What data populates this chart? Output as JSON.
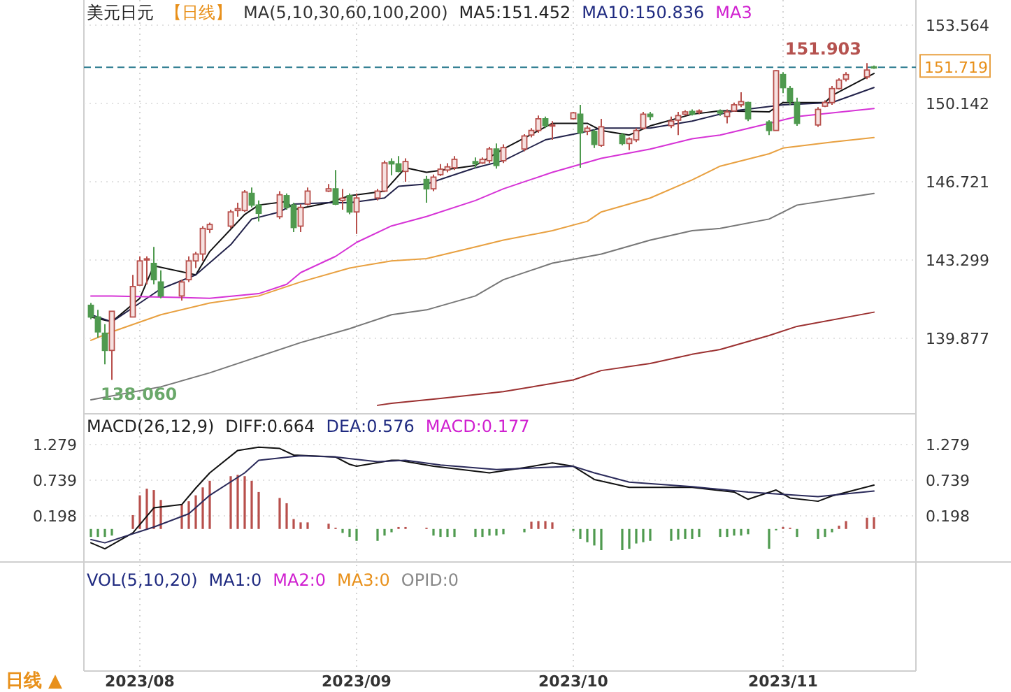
{
  "chart_data": [
    {
      "type": "candlestick",
      "title": "美元日元",
      "subtitle": "【日线】",
      "annotations": [
        "MA(5,10,30,60,100,200)",
        "MA5:151.452",
        "MA10:150.836",
        "MA3",
        {
          "text": "151.903",
          "x": "2023-11-13",
          "y": 151.903
        },
        {
          "text": "138.060",
          "x": "2023-07-28",
          "y": 138.06
        }
      ],
      "x": [
        "2023-07-25",
        "2023-07-26",
        "2023-07-27",
        "2023-07-28",
        "2023-07-31",
        "2023-08-01",
        "2023-08-02",
        "2023-08-03",
        "2023-08-04",
        "2023-08-07",
        "2023-08-08",
        "2023-08-09",
        "2023-08-10",
        "2023-08-11",
        "2023-08-14",
        "2023-08-15",
        "2023-08-16",
        "2023-08-17",
        "2023-08-18",
        "2023-08-21",
        "2023-08-22",
        "2023-08-23",
        "2023-08-24",
        "2023-08-25",
        "2023-08-28",
        "2023-08-29",
        "2023-08-30",
        "2023-08-31",
        "2023-09-01",
        "2023-09-04",
        "2023-09-05",
        "2023-09-06",
        "2023-09-07",
        "2023-09-08",
        "2023-09-11",
        "2023-09-12",
        "2023-09-13",
        "2023-09-14",
        "2023-09-15",
        "2023-09-18",
        "2023-09-19",
        "2023-09-20",
        "2023-09-21",
        "2023-09-22",
        "2023-09-25",
        "2023-09-26",
        "2023-09-27",
        "2023-09-28",
        "2023-09-29",
        "2023-10-02",
        "2023-10-03",
        "2023-10-04",
        "2023-10-05",
        "2023-10-06",
        "2023-10-09",
        "2023-10-10",
        "2023-10-11",
        "2023-10-12",
        "2023-10-13",
        "2023-10-16",
        "2023-10-17",
        "2023-10-18",
        "2023-10-19",
        "2023-10-20",
        "2023-10-23",
        "2023-10-24",
        "2023-10-25",
        "2023-10-26",
        "2023-10-27",
        "2023-10-30",
        "2023-10-31",
        "2023-11-01",
        "2023-11-02",
        "2023-11-03",
        "2023-11-06",
        "2023-11-07",
        "2023-11-08",
        "2023-11-09",
        "2023-11-10",
        "2023-11-13",
        "2023-11-14"
      ],
      "ohlc": [
        [
          141.32,
          141.42,
          140.71,
          140.81
        ],
        [
          140.81,
          141.12,
          139.9,
          140.16
        ],
        [
          140.1,
          140.5,
          138.74,
          139.35
        ],
        [
          139.35,
          141.06,
          138.06,
          141.06
        ],
        [
          140.81,
          142.65,
          140.81,
          142.14
        ],
        [
          142.2,
          143.46,
          142.2,
          143.26
        ],
        [
          143.3,
          143.46,
          142.24,
          143.35
        ],
        [
          143.15,
          143.87,
          142.24,
          142.44
        ],
        [
          142.34,
          142.85,
          141.63,
          141.73
        ],
        [
          141.73,
          142.44,
          141.53,
          142.34
        ],
        [
          142.44,
          143.46,
          142.34,
          143.26
        ],
        [
          143.26,
          143.66,
          142.95,
          143.56
        ],
        [
          143.56,
          144.78,
          143.26,
          144.68
        ],
        [
          144.64,
          144.93,
          144.48,
          144.85
        ],
        [
          144.78,
          145.5,
          144.68,
          145.4
        ],
        [
          145.46,
          145.8,
          145.19,
          145.54
        ],
        [
          145.46,
          146.35,
          145.4,
          146.27
        ],
        [
          146.21,
          146.47,
          145.6,
          145.7
        ],
        [
          145.7,
          145.9,
          144.99,
          145.34
        ],
        [
          145.19,
          146.31,
          145.09,
          146.15
        ],
        [
          146.11,
          146.21,
          145.5,
          145.6
        ],
        [
          145.7,
          145.8,
          144.52,
          144.72
        ],
        [
          144.78,
          145.74,
          144.52,
          145.6
        ],
        [
          145.74,
          146.47,
          145.68,
          146.31
        ],
        [
          146.31,
          146.62,
          146.27,
          146.41
        ],
        [
          146.41,
          147.23,
          145.7,
          145.74
        ],
        [
          145.9,
          146.41,
          145.5,
          146.0
        ],
        [
          146.11,
          146.21,
          145.3,
          145.4
        ],
        [
          145.4,
          146.21,
          144.44,
          146.01
        ],
        [
          146.01,
          146.41,
          145.9,
          146.31
        ],
        [
          146.31,
          147.64,
          146.27,
          147.54
        ],
        [
          147.6,
          147.74,
          147.0,
          147.5
        ],
        [
          147.5,
          147.84,
          147.13,
          147.17
        ],
        [
          147.17,
          147.74,
          146.72,
          147.6
        ],
        [
          146.82,
          146.97,
          145.8,
          146.41
        ],
        [
          146.41,
          147.03,
          146.31,
          146.92
        ],
        [
          147.03,
          147.49,
          146.97,
          147.27
        ],
        [
          147.23,
          147.53,
          147.13,
          147.37
        ],
        [
          147.33,
          147.84,
          147.23,
          147.7
        ],
        [
          147.6,
          147.78,
          147.33,
          147.5
        ],
        [
          147.54,
          147.78,
          147.5,
          147.7
        ],
        [
          147.64,
          148.25,
          147.54,
          148.15
        ],
        [
          148.15,
          148.39,
          147.29,
          147.43
        ],
        [
          147.64,
          148.35,
          147.54,
          148.21
        ],
        [
          148.15,
          148.8,
          148.05,
          148.72
        ],
        [
          148.76,
          149.06,
          148.66,
          148.96
        ],
        [
          148.96,
          149.61,
          148.86,
          149.47
        ],
        [
          149.47,
          149.57,
          149.06,
          149.17
        ],
        [
          149.17,
          149.37,
          148.55,
          149.2
        ],
        [
          149.47,
          149.77,
          149.43,
          149.73
        ],
        [
          149.67,
          150.08,
          147.33,
          148.86
        ],
        [
          148.92,
          149.17,
          148.76,
          149.06
        ],
        [
          148.92,
          149.0,
          148.19,
          148.35
        ],
        [
          148.31,
          149.47,
          148.25,
          149.12
        ],
        [
          148.76,
          148.86,
          148.31,
          148.39
        ],
        [
          148.39,
          148.66,
          148.1,
          148.59
        ],
        [
          148.55,
          149.06,
          148.45,
          148.96
        ],
        [
          149.06,
          149.77,
          149.0,
          149.67
        ],
        [
          149.67,
          149.77,
          149.41,
          149.57
        ],
        [
          149.17,
          149.57,
          149.06,
          149.37
        ],
        [
          149.41,
          149.77,
          148.76,
          149.61
        ],
        [
          149.67,
          149.84,
          149.61,
          149.77
        ],
        [
          149.79,
          149.88,
          149.61,
          149.67
        ],
        [
          149.77,
          149.88,
          149.67,
          149.81
        ],
        [
          149.8,
          149.88,
          149.6,
          149.72
        ],
        [
          149.57,
          149.88,
          149.27,
          149.77
        ],
        [
          149.81,
          150.18,
          149.78,
          150.08
        ],
        [
          150.08,
          150.63,
          149.98,
          150.22
        ],
        [
          150.18,
          150.22,
          149.37,
          149.47
        ],
        [
          149.33,
          149.41,
          148.76,
          148.96
        ],
        [
          148.96,
          151.6,
          148.96,
          151.57
        ],
        [
          151.4,
          151.51,
          150.59,
          150.83
        ],
        [
          150.79,
          150.9,
          150.08,
          150.22
        ],
        [
          150.18,
          150.39,
          149.16,
          149.27
        ],
        [
          149.2,
          149.98,
          149.12,
          149.88
        ],
        [
          150.02,
          150.28,
          149.98,
          150.18
        ],
        [
          150.18,
          150.9,
          150.08,
          150.79
        ],
        [
          150.79,
          151.24,
          150.75,
          151.16
        ],
        [
          151.2,
          151.51,
          151.1,
          151.4
        ],
        [
          151.3,
          151.903,
          151.2,
          151.6
        ],
        [
          151.74,
          151.8,
          151.65,
          151.719
        ]
      ],
      "series": [
        {
          "type": "line",
          "color": "#111111",
          "x": [
            "2023-07-25",
            "2023-07-28",
            "2023-08-01",
            "2023-08-03",
            "2023-08-09",
            "2023-08-11",
            "2023-08-16",
            "2023-08-18",
            "2023-08-22",
            "2023-08-23",
            "2023-08-28",
            "2023-08-31",
            "2023-09-05",
            "2023-09-08",
            "2023-09-11",
            "2023-09-18",
            "2023-09-22",
            "2023-09-29",
            "2023-10-04",
            "2023-10-06",
            "2023-10-10",
            "2023-10-13",
            "2023-10-19",
            "2023-10-23",
            "2023-10-30",
            "2023-11-01",
            "2023-11-07",
            "2023-11-08",
            "2023-11-14"
          ],
          "values": [
            140.81,
            140.6,
            141.63,
            143.05,
            142.65,
            143.67,
            145.29,
            145.7,
            145.86,
            145.5,
            145.8,
            146.11,
            146.31,
            147.33,
            147.13,
            147.43,
            148.15,
            149.27,
            149.27,
            148.96,
            148.76,
            149.16,
            149.67,
            149.82,
            149.77,
            150.18,
            150.18,
            150.49,
            151.452
          ]
        },
        {
          "type": "line",
          "color": "#22224a",
          "x": [
            "2023-07-25",
            "2023-07-28",
            "2023-08-01",
            "2023-08-04",
            "2023-08-09",
            "2023-08-14",
            "2023-08-17",
            "2023-08-21",
            "2023-08-23",
            "2023-08-28",
            "2023-08-31",
            "2023-09-05",
            "2023-09-07",
            "2023-09-11",
            "2023-09-18",
            "2023-09-22",
            "2023-09-28",
            "2023-10-03",
            "2023-10-06",
            "2023-10-13",
            "2023-10-19",
            "2023-10-25",
            "2023-11-01",
            "2023-11-08",
            "2023-11-14"
          ],
          "values": [
            140.91,
            140.6,
            141.42,
            142.04,
            142.65,
            143.97,
            145.09,
            145.4,
            145.74,
            145.8,
            145.8,
            146.01,
            146.52,
            146.62,
            147.33,
            147.64,
            148.55,
            148.86,
            149.06,
            149.06,
            149.37,
            149.82,
            150.08,
            150.18,
            150.836
          ]
        },
        {
          "type": "line",
          "color": "#d633d6",
          "x": [
            "2023-07-25",
            "2023-07-28",
            "2023-08-04",
            "2023-08-11",
            "2023-08-18",
            "2023-08-22",
            "2023-08-24",
            "2023-08-29",
            "2023-09-01",
            "2023-09-06",
            "2023-09-11",
            "2023-09-18",
            "2023-09-22",
            "2023-09-29",
            "2023-10-06",
            "2023-10-13",
            "2023-10-19",
            "2023-10-23",
            "2023-10-30",
            "2023-11-03",
            "2023-11-14"
          ],
          "values": [
            141.73,
            141.73,
            141.68,
            141.63,
            141.83,
            142.24,
            142.75,
            143.46,
            144.07,
            144.79,
            145.2,
            145.9,
            146.41,
            147.13,
            147.74,
            148.15,
            148.6,
            148.76,
            149.27,
            149.57,
            149.92
          ]
        },
        {
          "type": "line",
          "color": "#e8a040",
          "x": [
            "2023-07-25",
            "2023-07-28",
            "2023-08-04",
            "2023-08-11",
            "2023-08-18",
            "2023-08-24",
            "2023-08-31",
            "2023-09-06",
            "2023-09-11",
            "2023-09-18",
            "2023-09-22",
            "2023-09-29",
            "2023-10-04",
            "2023-10-06",
            "2023-10-13",
            "2023-10-19",
            "2023-10-23",
            "2023-10-30",
            "2023-11-01",
            "2023-11-08",
            "2023-11-14"
          ],
          "values": [
            139.79,
            140.16,
            140.91,
            141.42,
            141.73,
            142.34,
            142.95,
            143.26,
            143.36,
            143.87,
            144.17,
            144.58,
            144.99,
            145.4,
            146.01,
            146.8,
            147.4,
            147.94,
            148.19,
            148.45,
            148.65
          ]
        },
        {
          "type": "line",
          "color": "#777777",
          "x": [
            "2023-07-25",
            "2023-08-04",
            "2023-08-11",
            "2023-08-17",
            "2023-08-24",
            "2023-08-31",
            "2023-09-06",
            "2023-09-11",
            "2023-09-18",
            "2023-09-22",
            "2023-09-29",
            "2023-10-06",
            "2023-10-13",
            "2023-10-19",
            "2023-10-23",
            "2023-10-30",
            "2023-11-03",
            "2023-11-14"
          ],
          "values": [
            137.19,
            137.76,
            138.37,
            138.98,
            139.69,
            140.3,
            140.91,
            141.12,
            141.73,
            142.44,
            143.16,
            143.56,
            144.17,
            144.58,
            144.68,
            145.09,
            145.7,
            146.21
          ]
        },
        {
          "type": "line",
          "color": "#9b3030",
          "x": [
            "2023-09-04",
            "2023-09-06",
            "2023-09-13",
            "2023-09-22",
            "2023-10-02",
            "2023-10-06",
            "2023-10-13",
            "2023-10-19",
            "2023-10-23",
            "2023-10-30",
            "2023-11-03",
            "2023-11-14"
          ],
          "values": [
            136.95,
            137.04,
            137.25,
            137.55,
            138.06,
            138.47,
            138.78,
            139.18,
            139.39,
            140.0,
            140.4,
            141.02
          ]
        }
      ],
      "ref_lines": [
        {
          "axis": "y",
          "value": 151.719,
          "label": "151.719",
          "color": "#2b7b8f",
          "line_style": "dashed"
        }
      ],
      "xlim": [
        "2023-07-24",
        "2023-11-20"
      ],
      "ylim": [
        136.58,
        154.66
      ],
      "xticks": [
        {
          "value": "2023-08-01",
          "label": null
        },
        {
          "value": "2023-09-01",
          "label": null
        },
        {
          "value": "2023-10-02",
          "label": null
        },
        {
          "value": "2023-11-01",
          "label": null
        }
      ],
      "yticks": [
        139.877,
        143.299,
        146.721,
        150.142,
        153.564
      ],
      "tick_labels": "y",
      "grid": true
    },
    {
      "type": "line",
      "title": "MACD(26,12,9)",
      "annotations": [
        "DIFF:0.664",
        "DEA:0.576",
        "MACD:0.177"
      ],
      "x": [
        "2023-07-25",
        "2023-07-26",
        "2023-07-27",
        "2023-07-28",
        "2023-07-31",
        "2023-08-01",
        "2023-08-02",
        "2023-08-03",
        "2023-08-04",
        "2023-08-07",
        "2023-08-08",
        "2023-08-09",
        "2023-08-10",
        "2023-08-11",
        "2023-08-14",
        "2023-08-15",
        "2023-08-16",
        "2023-08-17",
        "2023-08-18",
        "2023-08-21",
        "2023-08-22",
        "2023-08-23",
        "2023-08-24",
        "2023-08-25",
        "2023-08-28",
        "2023-08-29",
        "2023-08-30",
        "2023-08-31",
        "2023-09-01",
        "2023-09-04",
        "2023-09-05",
        "2023-09-06",
        "2023-09-07",
        "2023-09-08",
        "2023-09-11",
        "2023-09-12",
        "2023-09-13",
        "2023-09-14",
        "2023-09-15",
        "2023-09-18",
        "2023-09-19",
        "2023-09-20",
        "2023-09-21",
        "2023-09-22",
        "2023-09-25",
        "2023-09-26",
        "2023-09-27",
        "2023-09-28",
        "2023-09-29",
        "2023-10-02",
        "2023-10-03",
        "2023-10-04",
        "2023-10-05",
        "2023-10-06",
        "2023-10-09",
        "2023-10-10",
        "2023-10-11",
        "2023-10-12",
        "2023-10-13",
        "2023-10-16",
        "2023-10-17",
        "2023-10-18",
        "2023-10-19",
        "2023-10-20",
        "2023-10-23",
        "2023-10-24",
        "2023-10-25",
        "2023-10-26",
        "2023-10-27",
        "2023-10-30",
        "2023-10-31",
        "2023-11-01",
        "2023-11-02",
        "2023-11-03",
        "2023-11-06",
        "2023-11-07",
        "2023-11-08",
        "2023-11-09",
        "2023-11-10",
        "2023-11-13",
        "2023-11-14"
      ],
      "series": [
        {
          "type": "bar",
          "colors": [
            "#4f9a4f",
            "#4f9a4f",
            "#4f9a4f",
            "#4f9a4f",
            "#b8504c",
            "#b8504c",
            "#b8504c",
            "#b8504c",
            "#b8504c",
            "#b8504c",
            "#b8504c",
            "#b8504c",
            "#b8504c",
            "#b8504c",
            "#b8504c",
            "#b8504c",
            "#b8504c",
            "#b8504c",
            "#b8504c",
            "#b8504c",
            "#b8504c",
            "#b8504c",
            "#b8504c",
            "#b8504c",
            "#b8504c",
            "#b8504c",
            "#4f9a4f",
            "#4f9a4f",
            "#4f9a4f",
            "#4f9a4f",
            "#4f9a4f",
            "#4f9a4f",
            "#b8504c",
            "#b8504c",
            "#b8504c",
            "#4f9a4f",
            "#4f9a4f",
            "#4f9a4f",
            "#4f9a4f",
            "#4f9a4f",
            "#4f9a4f",
            "#4f9a4f",
            "#4f9a4f",
            "#4f9a4f",
            "#4f9a4f",
            "#b8504c",
            "#b8504c",
            "#b8504c",
            "#b8504c",
            "#4f9a4f",
            "#4f9a4f",
            "#4f9a4f",
            "#4f9a4f",
            "#4f9a4f",
            "#4f9a4f",
            "#4f9a4f",
            "#4f9a4f",
            "#4f9a4f",
            "#4f9a4f",
            "#4f9a4f",
            "#4f9a4f",
            "#4f9a4f",
            "#4f9a4f",
            "#4f9a4f",
            "#4f9a4f",
            "#4f9a4f",
            "#4f9a4f",
            "#4f9a4f",
            "#4f9a4f",
            "#4f9a4f",
            "#4f9a4f",
            "#b8504c",
            "#b8504c",
            "#4f9a4f",
            "#4f9a4f",
            "#4f9a4f",
            "#4f9a4f",
            "#b8504c",
            "#b8504c",
            "#b8504c",
            "#b8504c"
          ],
          "values": [
            -0.12,
            -0.12,
            -0.12,
            -0.1,
            0.21,
            0.51,
            0.61,
            0.59,
            0.44,
            0.37,
            0.42,
            0.51,
            0.63,
            0.73,
            0.8,
            0.82,
            0.8,
            0.73,
            0.56,
            0.47,
            0.39,
            0.15,
            0.1,
            0.1,
            0.08,
            0.02,
            -0.06,
            -0.12,
            -0.18,
            -0.18,
            -0.1,
            -0.05,
            0.03,
            0.03,
            0.02,
            -0.1,
            -0.12,
            -0.12,
            -0.12,
            -0.12,
            -0.12,
            -0.1,
            -0.1,
            -0.08,
            -0.05,
            0.11,
            0.12,
            0.12,
            0.1,
            -0.03,
            -0.15,
            -0.2,
            -0.25,
            -0.32,
            -0.32,
            -0.3,
            -0.22,
            -0.2,
            -0.18,
            -0.18,
            -0.16,
            -0.15,
            -0.15,
            -0.12,
            -0.12,
            -0.12,
            -0.1,
            -0.1,
            -0.08,
            -0.3,
            -0.02,
            0.03,
            0.02,
            -0.12,
            -0.15,
            -0.12,
            -0.05,
            0.05,
            0.12,
            0.17,
            0.177
          ]
        },
        {
          "type": "line",
          "color": "#111111",
          "x": [
            "2023-07-25",
            "2023-07-27",
            "2023-07-31",
            "2023-08-03",
            "2023-08-07",
            "2023-08-09",
            "2023-08-11",
            "2023-08-15",
            "2023-08-18",
            "2023-08-21",
            "2023-08-23",
            "2023-08-29",
            "2023-08-31",
            "2023-09-01",
            "2023-09-06",
            "2023-09-07",
            "2023-09-12",
            "2023-09-20",
            "2023-09-25",
            "2023-09-29",
            "2023-10-02",
            "2023-10-05",
            "2023-10-10",
            "2023-10-19",
            "2023-10-25",
            "2023-10-27",
            "2023-10-31",
            "2023-11-02",
            "2023-11-06",
            "2023-11-08",
            "2023-11-14"
          ],
          "values": [
            -0.21,
            -0.3,
            -0.06,
            0.32,
            0.37,
            0.62,
            0.85,
            1.19,
            1.24,
            1.22,
            1.12,
            1.09,
            0.98,
            0.95,
            1.04,
            1.04,
            0.95,
            0.85,
            0.93,
            1.0,
            0.95,
            0.75,
            0.63,
            0.63,
            0.56,
            0.45,
            0.59,
            0.47,
            0.42,
            0.5,
            0.664
          ]
        },
        {
          "type": "line",
          "color": "#2a2a5a",
          "x": [
            "2023-07-25",
            "2023-07-27",
            "2023-08-03",
            "2023-08-08",
            "2023-08-11",
            "2023-08-16",
            "2023-08-18",
            "2023-08-24",
            "2023-08-29",
            "2023-09-04",
            "2023-09-08",
            "2023-09-13",
            "2023-09-21",
            "2023-10-02",
            "2023-10-05",
            "2023-10-10",
            "2023-10-19",
            "2023-10-27",
            "2023-11-06",
            "2023-11-14"
          ],
          "values": [
            -0.16,
            -0.21,
            0.03,
            0.23,
            0.51,
            0.85,
            1.04,
            1.11,
            1.09,
            1.02,
            1.04,
            0.97,
            0.9,
            0.95,
            0.85,
            0.71,
            0.64,
            0.56,
            0.49,
            0.576
          ]
        }
      ],
      "xlim": [
        "2023-07-24",
        "2023-11-20"
      ],
      "ylim": [
        -2.152,
        1.745
      ],
      "xticks": [
        {
          "value": "2023-08-01",
          "label": "2023/08"
        },
        {
          "value": "2023-09-01",
          "label": "2023/09"
        },
        {
          "value": "2023-10-02",
          "label": "2023/10"
        },
        {
          "value": "2023-11-01",
          "label": "2023/11"
        }
      ],
      "yticks": [
        0.198,
        0.739,
        1.279
      ],
      "y2lim": [
        -2.152,
        1.745
      ],
      "y2ticks": [
        0.198,
        0.739,
        1.279
      ],
      "grid": true
    },
    {
      "type": "other",
      "title": "VOL(5,10,20)",
      "annotations": [
        "MA1:0",
        "MA2:0",
        "MA3:0",
        "OPID:0"
      ],
      "xlabel": "日线 ▲"
    }
  ]
}
